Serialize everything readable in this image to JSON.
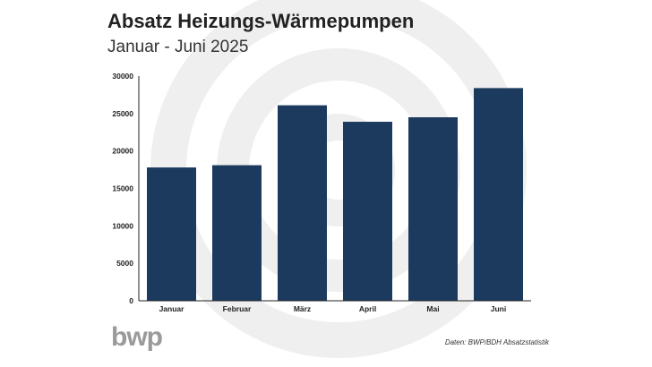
{
  "chart_data": {
    "type": "bar",
    "title": "Absatz Heizungs-Wärmepumpen",
    "subtitle": "Januar - Juni 2025",
    "categories": [
      "Januar",
      "Februar",
      "März",
      "April",
      "Mai",
      "Juni"
    ],
    "values": [
      17800,
      18100,
      26100,
      23900,
      24500,
      28400
    ],
    "ylim": [
      0,
      30000
    ],
    "yticks": [
      0,
      5000,
      10000,
      15000,
      20000,
      25000,
      30000
    ],
    "ytick_labels": [
      "0",
      "5000",
      "10000",
      "15000",
      "20000",
      "25000",
      "30000"
    ],
    "xlabel": "",
    "ylabel": "",
    "grid": false,
    "bar_color": "#1b3a5e"
  },
  "footer": {
    "source": "Daten: BWP/BDH Absatzstatistik",
    "logo_text": "bwp"
  }
}
